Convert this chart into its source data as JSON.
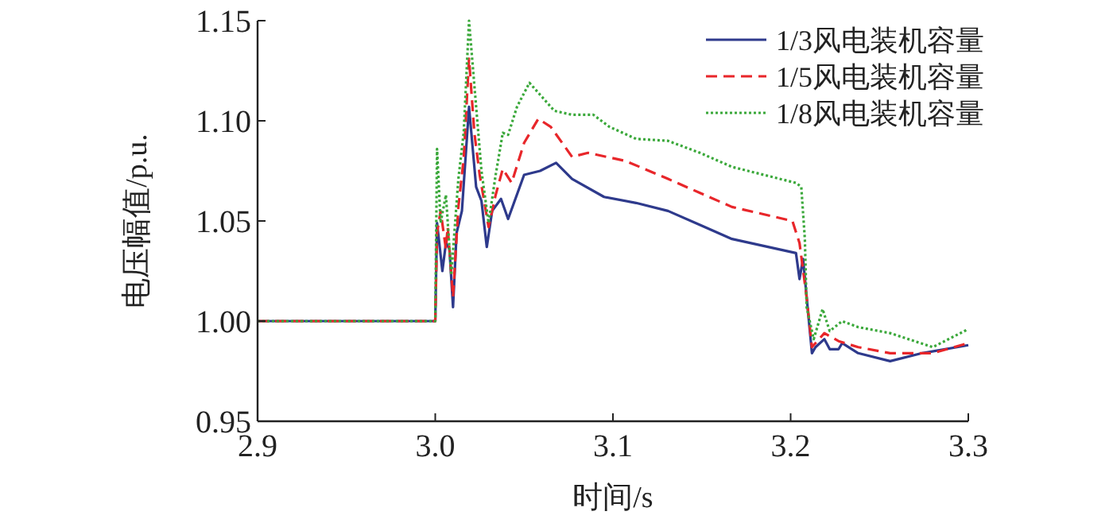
{
  "chart_data": {
    "type": "line",
    "xlabel": "时间/s",
    "ylabel": "电压幅值/p.u.",
    "xlim": [
      2.9,
      3.3
    ],
    "ylim": [
      0.95,
      1.15
    ],
    "xticks": [
      2.9,
      {
        "value": 3,
        "label": "3.0"
      },
      3.1,
      3.2,
      3.3
    ],
    "yticks": [
      0.95,
      {
        "value": 1,
        "label": "1.00"
      },
      1.05,
      {
        "value": 1.1,
        "label": "1.10"
      },
      1.15
    ],
    "legend": "top right",
    "series": [
      {
        "name": "1/3风电装机容量",
        "color": "#2e3a8c",
        "line_style": "solid",
        "x": [
          2.9,
          3.0,
          3.001,
          3.004,
          3.006,
          3.008,
          3.01,
          3.012,
          3.015,
          3.019,
          3.023,
          3.026,
          3.029,
          3.032,
          3.037,
          3.041,
          3.05,
          3.059,
          3.068,
          3.077,
          3.095,
          3.113,
          3.131,
          3.149,
          3.167,
          3.203,
          3.205,
          3.207,
          3.212,
          3.214,
          3.219,
          3.222,
          3.227,
          3.229,
          3.238,
          3.256,
          3.274,
          3.3
        ],
        "values": [
          1.0,
          1.0,
          1.049,
          1.025,
          1.039,
          1.036,
          1.007,
          1.044,
          1.055,
          1.107,
          1.067,
          1.06,
          1.037,
          1.055,
          1.061,
          1.051,
          1.073,
          1.075,
          1.079,
          1.071,
          1.062,
          1.059,
          1.055,
          1.048,
          1.041,
          1.034,
          1.021,
          1.031,
          0.984,
          0.987,
          0.991,
          0.986,
          0.986,
          0.989,
          0.984,
          0.98,
          0.984,
          0.988
        ]
      },
      {
        "name": "1/5风电装机容量",
        "color": "#e8262a",
        "line_style": "dashed",
        "x": [
          2.9,
          3.0,
          3.001,
          3.003,
          3.006,
          3.007,
          3.01,
          3.013,
          3.016,
          3.019,
          3.022,
          3.025,
          3.03,
          3.034,
          3.038,
          3.043,
          3.05,
          3.058,
          3.065,
          3.077,
          3.086,
          3.107,
          3.131,
          3.149,
          3.167,
          3.201,
          3.205,
          3.209,
          3.212,
          3.216,
          3.219,
          3.227,
          3.238,
          3.256,
          3.28,
          3.3
        ],
        "values": [
          1.0,
          1.0,
          1.044,
          1.055,
          1.036,
          1.047,
          1.012,
          1.057,
          1.081,
          1.131,
          1.094,
          1.073,
          1.047,
          1.063,
          1.076,
          1.069,
          1.089,
          1.101,
          1.097,
          1.082,
          1.084,
          1.08,
          1.071,
          1.064,
          1.057,
          1.05,
          1.039,
          1.012,
          0.987,
          0.991,
          0.994,
          0.99,
          0.987,
          0.984,
          0.984,
          0.989
        ]
      },
      {
        "name": "1/8风电装机容量",
        "color": "#3aa83a",
        "line_style": "dotted",
        "x": [
          2.9,
          3.0,
          3.001,
          3.003,
          3.006,
          3.009,
          3.013,
          3.016,
          3.019,
          3.023,
          3.026,
          3.03,
          3.034,
          3.038,
          3.041,
          3.046,
          3.053,
          3.059,
          3.067,
          3.077,
          3.089,
          3.098,
          3.113,
          3.131,
          3.149,
          3.167,
          3.203,
          3.206,
          3.208,
          3.209,
          3.213,
          3.218,
          3.222,
          3.229,
          3.238,
          3.256,
          3.28,
          3.3
        ],
        "values": [
          1.0,
          1.0,
          1.086,
          1.049,
          1.063,
          1.023,
          1.071,
          1.094,
          1.15,
          1.107,
          1.075,
          1.049,
          1.073,
          1.094,
          1.093,
          1.107,
          1.119,
          1.113,
          1.105,
          1.103,
          1.103,
          1.097,
          1.091,
          1.09,
          1.084,
          1.077,
          1.069,
          1.067,
          1.041,
          1.007,
          0.991,
          1.006,
          0.995,
          1.0,
          0.997,
          0.994,
          0.987,
          0.996
        ]
      }
    ]
  }
}
